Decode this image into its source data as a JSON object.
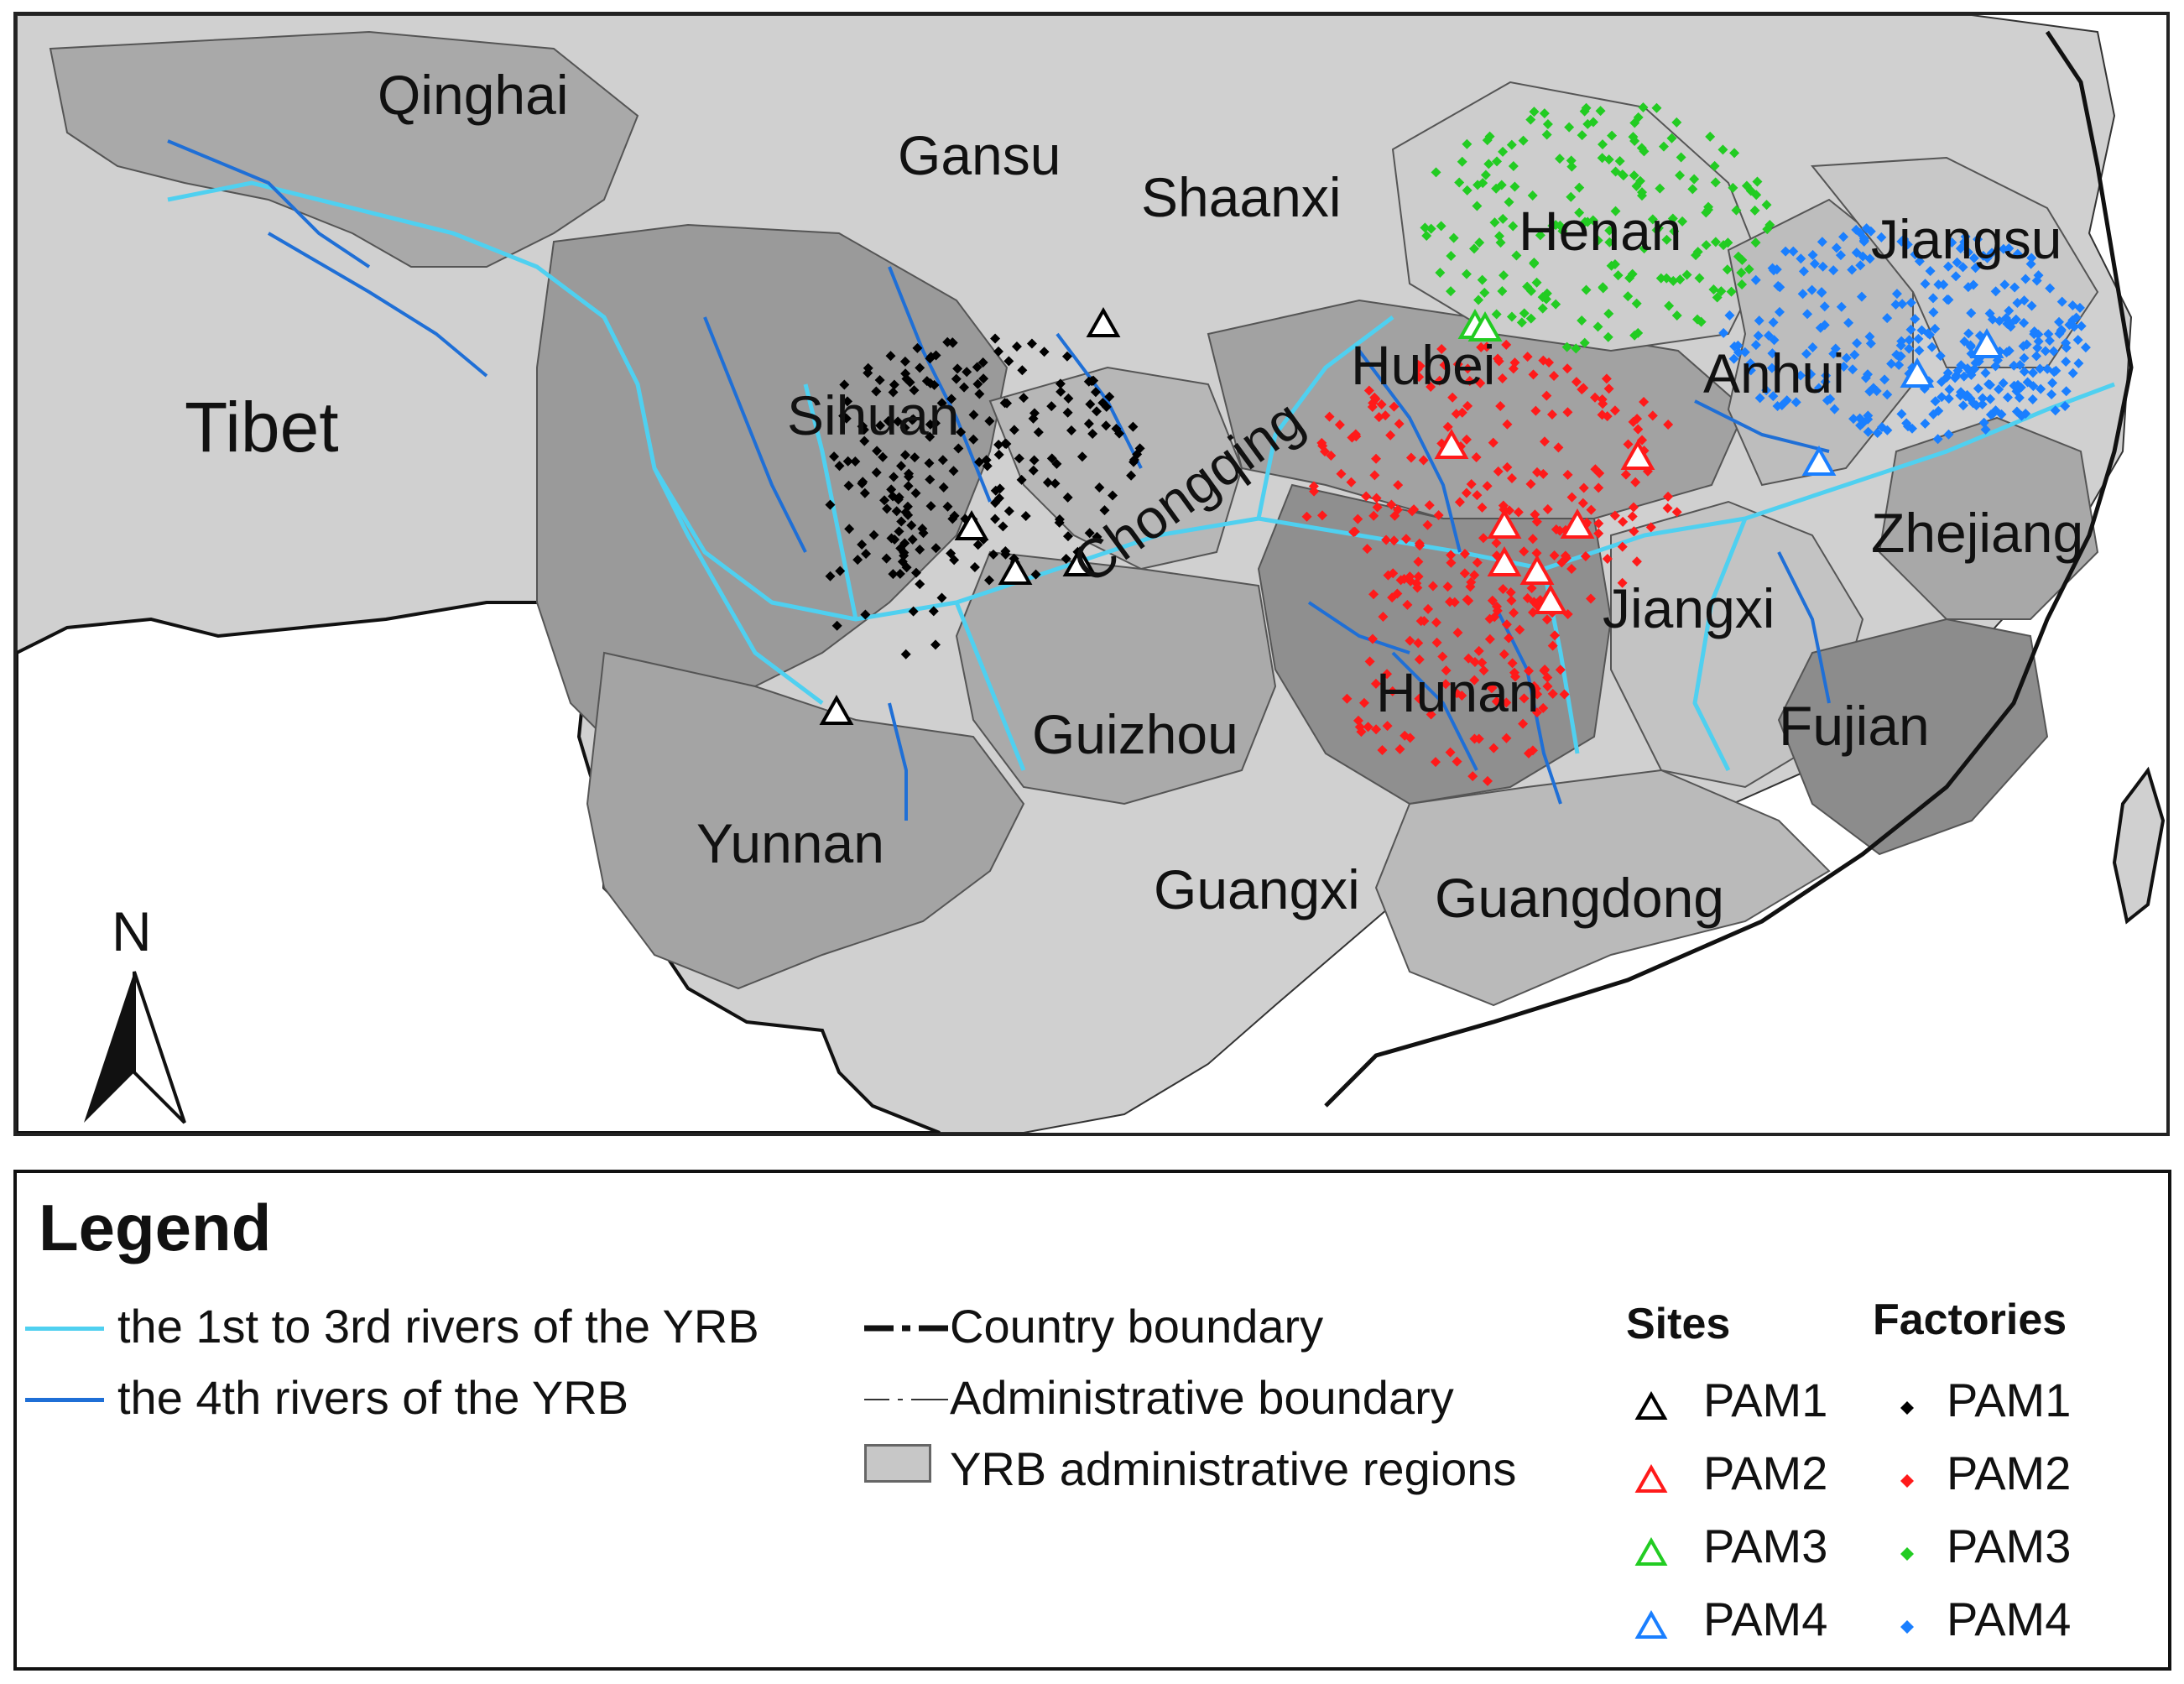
{
  "provinces": [
    {
      "id": "qinghai",
      "name": "Qinghai"
    },
    {
      "id": "gansu",
      "name": "Gansu"
    },
    {
      "id": "shaanxi",
      "name": "Shaanxi"
    },
    {
      "id": "henan",
      "name": "Henan"
    },
    {
      "id": "jiangsu",
      "name": "Jiangsu"
    },
    {
      "id": "tibet",
      "name": "Tibet"
    },
    {
      "id": "sihuan",
      "name": "Sihuan"
    },
    {
      "id": "chongqing",
      "name": "Chongqing"
    },
    {
      "id": "hubei",
      "name": "Hubei"
    },
    {
      "id": "anhui",
      "name": "Anhui"
    },
    {
      "id": "zhejiang",
      "name": "Zhejiang"
    },
    {
      "id": "jiangxi",
      "name": "Jiangxi"
    },
    {
      "id": "hunan",
      "name": "Hunan"
    },
    {
      "id": "fujian",
      "name": "Fujian"
    },
    {
      "id": "guizhou",
      "name": "Guizhou"
    },
    {
      "id": "yunnan",
      "name": "Yunnan"
    },
    {
      "id": "guangxi",
      "name": "Guangxi"
    },
    {
      "id": "guangdong",
      "name": "Guangdong"
    }
  ],
  "north_arrow": {
    "label": "N",
    "icon": "north-arrow-icon"
  },
  "legend": {
    "title": "Legend",
    "rivers_1_3": "the 1st to 3rd rivers of the YRB",
    "rivers_4": "the 4th rivers of the YRB",
    "country_boundary": "Country boundary",
    "admin_boundary": "Administrative boundary",
    "yrb_regions": "YRB administrative regions",
    "sites_heading": "Sites",
    "factories_heading": "Factories",
    "sites": [
      "PAM1",
      "PAM2",
      "PAM3",
      "PAM4"
    ],
    "factories": [
      "PAM1",
      "PAM2",
      "PAM3",
      "PAM4"
    ]
  },
  "colors": {
    "river_light": "#4fd0f0",
    "river_dark": "#1f6fd6",
    "yrb_region": "#9e9e9e",
    "other_region": "#cfcfcf",
    "pam1": "#000000",
    "pam2": "#ff1a1a",
    "pam3": "#22cc22",
    "pam4": "#1a7fff"
  }
}
